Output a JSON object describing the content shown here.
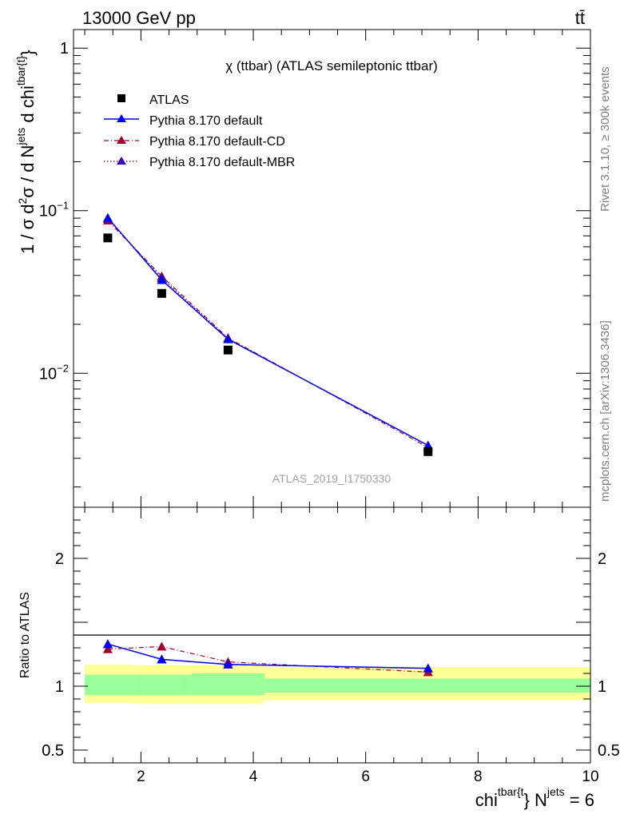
{
  "header": {
    "left": "13000 GeV pp",
    "right": "tt̄"
  },
  "side": {
    "rivet": "Rivet 3.1.10, ≥ 300k events",
    "mcplots": "mcplots.cern.ch [arXiv:1306.3436]"
  },
  "colors": {
    "atlas": "#000000",
    "default": "#0000ee",
    "cd": "#a00030",
    "mbr": "#3a00c0",
    "band_outer": "#ffff99",
    "band_inner": "#99ff99",
    "side_text": "#7f7f7f"
  },
  "chart_data": {
    "type": "line",
    "title": "χ (ttbar) (ATLAS semileptonic ttbar)",
    "analysis_id": "ATLAS_2019_I1750330",
    "ylabel": {
      "main": "1 / σ d",
      "sup1": "2",
      "mid": "σ / d N",
      "sup2": "jets",
      "end": " d chi",
      "sup3": "tbar{t}",
      "close": "}"
    },
    "xlabel": {
      "main": "chi",
      "sup1": "tbar{t",
      "mid": "} N",
      "sup2": "jets",
      "end": " = 6"
    },
    "ratio_ylabel": "Ratio to ATLAS",
    "xlim": [
      0.8,
      10.0
    ],
    "ylim": [
      0.0015,
      1.3
    ],
    "ylog": true,
    "y_tick_labels": [
      {
        "value": 1,
        "label": "1"
      },
      {
        "value": 0.1,
        "label": "10",
        "sup": "−1"
      },
      {
        "value": 0.01,
        "label": "10",
        "sup": "−2"
      }
    ],
    "x_tick_labels": [
      {
        "value": 2,
        "label": "2"
      },
      {
        "value": 4,
        "label": "4"
      },
      {
        "value": 6,
        "label": "6"
      },
      {
        "value": 8,
        "label": "8"
      },
      {
        "value": 10,
        "label": "10"
      }
    ],
    "ratio_ylim": [
      0.4,
      2.4
    ],
    "ratio_tick_labels": [
      {
        "value": 0.5,
        "label": "0.5"
      },
      {
        "value": 1,
        "label": "1"
      },
      {
        "value": 2,
        "label": "2"
      }
    ],
    "legend_position": "top-left",
    "series": [
      {
        "name": "ATLAS",
        "marker": "square",
        "style": "none",
        "x": [
          1.41,
          2.37,
          3.55,
          7.11
        ],
        "y": [
          0.068,
          0.031,
          0.0139,
          0.0033
        ]
      },
      {
        "name": "Pythia 8.170 default",
        "marker": "triangle",
        "style": "solid",
        "x": [
          1.41,
          2.37,
          3.55,
          7.11
        ],
        "y": [
          0.0905,
          0.0375,
          0.0162,
          0.0036
        ]
      },
      {
        "name": "Pythia 8.170 default-CD",
        "marker": "triangle",
        "style": "dashdot",
        "x": [
          1.41,
          2.37,
          3.55,
          7.11
        ],
        "y": [
          0.087,
          0.0395,
          0.0165,
          0.0035
        ]
      },
      {
        "name": "Pythia 8.170 default-MBR",
        "marker": "triangle",
        "style": "dotted",
        "x": [
          1.41,
          2.37,
          3.55,
          7.11
        ],
        "y": [
          0.0895,
          0.0385,
          0.0163,
          0.0036
        ]
      }
    ],
    "ratio_series": [
      {
        "name": "Pythia 8.170 default",
        "x": [
          1.41,
          2.37,
          3.55,
          7.11
        ],
        "y": [
          1.33,
          1.21,
          1.17,
          1.14
        ],
        "err": [
          0.01,
          0.01,
          0.01,
          0.02
        ]
      },
      {
        "name": "Pythia 8.170 default-CD",
        "x": [
          1.41,
          2.37,
          3.55,
          7.11
        ],
        "y": [
          1.29,
          1.31,
          1.19,
          1.11
        ],
        "err": [
          0.02,
          0.03,
          0.03,
          0.02
        ]
      },
      {
        "name": "Pythia 8.170 default-MBR",
        "x": [
          1.41,
          2.37,
          3.55,
          7.11
        ],
        "y": [
          1.33,
          1.21,
          1.17,
          1.14
        ],
        "err": [
          0.01,
          0.01,
          0.01,
          0.02
        ]
      }
    ],
    "ratio_bands": [
      {
        "x": [
          1.0,
          1.9
        ],
        "outer": [
          0.87,
          1.17
        ],
        "inner": [
          0.93,
          1.09
        ]
      },
      {
        "x": [
          1.9,
          2.9
        ],
        "outer": [
          0.865,
          1.165
        ],
        "inner": [
          0.93,
          1.09
        ]
      },
      {
        "x": [
          2.9,
          4.2
        ],
        "outer": [
          0.865,
          1.165
        ],
        "inner": [
          0.93,
          1.1
        ]
      },
      {
        "x": [
          4.2,
          10.0
        ],
        "outer": [
          0.89,
          1.15
        ],
        "inner": [
          0.95,
          1.06
        ]
      }
    ]
  }
}
